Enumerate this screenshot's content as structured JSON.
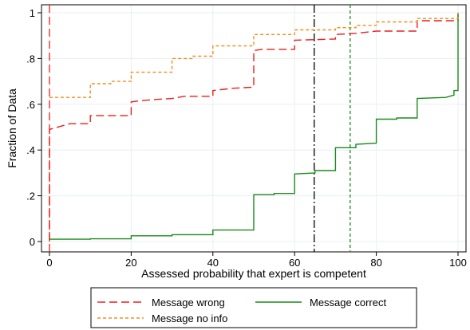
{
  "chart_data": {
    "type": "line",
    "step": true,
    "xlabel": "Assessed probability that expert is competent",
    "ylabel": "Fraction of Data",
    "xlim": [
      0,
      100
    ],
    "ylim": [
      0,
      1
    ],
    "xticks": [
      0,
      20,
      40,
      60,
      80,
      100
    ],
    "yticks": [
      0,
      0.2,
      0.4,
      0.6,
      0.8,
      1
    ],
    "ytick_labels": [
      "0",
      ".2",
      ".4",
      ".6",
      ".8",
      "1"
    ],
    "grid": true,
    "legend_position": "bottom",
    "series": [
      {
        "name": "Message wrong",
        "color": "#e8201c",
        "dash": "long-dash",
        "points": [
          [
            0,
            0
          ],
          [
            0,
            0.49
          ],
          [
            1,
            0.495
          ],
          [
            3,
            0.505
          ],
          [
            5,
            0.515
          ],
          [
            10,
            0.515
          ],
          [
            10,
            0.55
          ],
          [
            20,
            0.55
          ],
          [
            20,
            0.61
          ],
          [
            22,
            0.615
          ],
          [
            25,
            0.62
          ],
          [
            30,
            0.625
          ],
          [
            33,
            0.635
          ],
          [
            40,
            0.635
          ],
          [
            40,
            0.66
          ],
          [
            45,
            0.67
          ],
          [
            50,
            0.675
          ],
          [
            50,
            0.835
          ],
          [
            52,
            0.84
          ],
          [
            60,
            0.84
          ],
          [
            60,
            0.88
          ],
          [
            70,
            0.885
          ],
          [
            70,
            0.905
          ],
          [
            75,
            0.91
          ],
          [
            80,
            0.92
          ],
          [
            90,
            0.92
          ],
          [
            90,
            0.965
          ],
          [
            100,
            0.965
          ],
          [
            100,
            1
          ]
        ]
      },
      {
        "name": "Message correct",
        "color": "#1b8a1b",
        "dash": "solid",
        "points": [
          [
            0,
            0.01
          ],
          [
            10,
            0.01
          ],
          [
            10,
            0.012
          ],
          [
            20,
            0.012
          ],
          [
            20,
            0.025
          ],
          [
            30,
            0.025
          ],
          [
            30,
            0.03
          ],
          [
            40,
            0.03
          ],
          [
            40,
            0.05
          ],
          [
            50,
            0.05
          ],
          [
            50,
            0.205
          ],
          [
            55,
            0.205
          ],
          [
            55,
            0.21
          ],
          [
            60,
            0.21
          ],
          [
            60,
            0.295
          ],
          [
            65,
            0.3
          ],
          [
            65,
            0.31
          ],
          [
            70,
            0.31
          ],
          [
            70,
            0.41
          ],
          [
            75,
            0.41
          ],
          [
            75,
            0.425
          ],
          [
            80,
            0.43
          ],
          [
            80,
            0.535
          ],
          [
            85,
            0.535
          ],
          [
            85,
            0.54
          ],
          [
            90,
            0.54
          ],
          [
            90,
            0.625
          ],
          [
            97,
            0.63
          ],
          [
            99,
            0.64
          ],
          [
            99,
            0.66
          ],
          [
            100,
            0.66
          ],
          [
            100,
            1
          ]
        ]
      },
      {
        "name": "Message no info",
        "color": "#f28e1c",
        "dash": "short-dash",
        "points": [
          [
            0,
            0.63
          ],
          [
            10,
            0.63
          ],
          [
            10,
            0.69
          ],
          [
            15,
            0.69
          ],
          [
            15,
            0.7
          ],
          [
            20,
            0.7
          ],
          [
            20,
            0.74
          ],
          [
            30,
            0.74
          ],
          [
            30,
            0.8
          ],
          [
            35,
            0.8
          ],
          [
            35,
            0.81
          ],
          [
            40,
            0.81
          ],
          [
            40,
            0.855
          ],
          [
            50,
            0.855
          ],
          [
            50,
            0.905
          ],
          [
            60,
            0.905
          ],
          [
            60,
            0.925
          ],
          [
            70,
            0.925
          ],
          [
            70,
            0.935
          ],
          [
            75,
            0.935
          ],
          [
            75,
            0.945
          ],
          [
            80,
            0.945
          ],
          [
            80,
            0.96
          ],
          [
            90,
            0.96
          ],
          [
            90,
            0.975
          ],
          [
            100,
            0.975
          ],
          [
            100,
            1
          ]
        ]
      }
    ],
    "reference_lines": [
      {
        "x": 0,
        "color": "#e8201c",
        "dash": "long-dash"
      },
      {
        "x": 64.8,
        "color": "#000000",
        "dash": "dash-dot"
      },
      {
        "x": 73.6,
        "color": "#1b8a1b",
        "dash": "short-dash"
      }
    ],
    "legend": {
      "items": [
        {
          "label": "Message wrong",
          "series": 0
        },
        {
          "label": "Message correct",
          "series": 1
        },
        {
          "label": "Message no info",
          "series": 2
        }
      ]
    }
  }
}
